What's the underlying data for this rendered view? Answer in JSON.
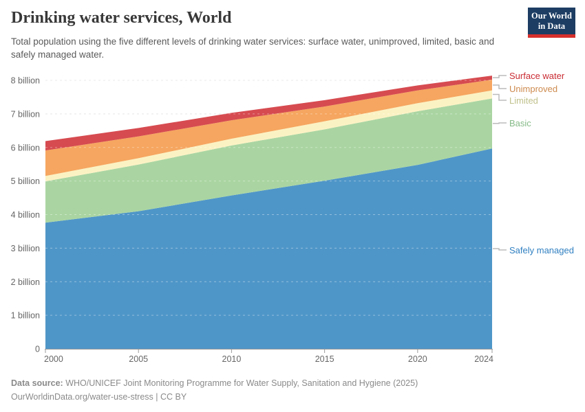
{
  "header": {
    "title": "Drinking water services, World",
    "subtitle": "Total population using the five different levels of drinking water services: surface water, unimproved, limited, basic and safely managed water.",
    "logo": {
      "line1": "Our World",
      "line2": "in Data"
    }
  },
  "chart_data": {
    "type": "area",
    "stacked": true,
    "title": "Drinking water services, World",
    "entity": "World",
    "unit": "billion people",
    "legend_position": "right",
    "grid": "dashed-horizontal",
    "x": [
      2000,
      2005,
      2010,
      2015,
      2020,
      2024
    ],
    "series": [
      {
        "name": "Safely managed",
        "color": "#4f96c8",
        "label_color": "#2f7fc1",
        "values": [
          3.76,
          4.1,
          4.57,
          5.01,
          5.48,
          5.97
        ]
      },
      {
        "name": "Basic",
        "color": "#aad5a2",
        "label_color": "#85ba87",
        "values": [
          1.23,
          1.39,
          1.49,
          1.53,
          1.6,
          1.49
        ]
      },
      {
        "name": "Limited",
        "color": "#fbf2c3",
        "label_color": "#c0c18c",
        "values": [
          0.16,
          0.19,
          0.2,
          0.24,
          0.24,
          0.24
        ]
      },
      {
        "name": "Unimproved",
        "color": "#f6a660",
        "label_color": "#cd8a4e",
        "values": [
          0.76,
          0.65,
          0.55,
          0.44,
          0.38,
          0.32
        ]
      },
      {
        "name": "Surface water",
        "color": "#d64b50",
        "label_color": "#c92a32",
        "values": [
          0.28,
          0.25,
          0.22,
          0.19,
          0.15,
          0.12
        ]
      }
    ],
    "ylim": [
      0,
      8.5
    ],
    "yticks": [
      {
        "value": 0,
        "label": "0"
      },
      {
        "value": 1,
        "label": "1 billion"
      },
      {
        "value": 2,
        "label": "2 billion"
      },
      {
        "value": 3,
        "label": "3 billion"
      },
      {
        "value": 4,
        "label": "4 billion"
      },
      {
        "value": 5,
        "label": "5 billion"
      },
      {
        "value": 6,
        "label": "6 billion"
      },
      {
        "value": 7,
        "label": "7 billion"
      },
      {
        "value": 8,
        "label": "8 billion"
      }
    ],
    "xticks": [
      {
        "value": 2000,
        "label": "2000"
      },
      {
        "value": 2005,
        "label": "2005"
      },
      {
        "value": 2010,
        "label": "2010"
      },
      {
        "value": 2015,
        "label": "2015"
      },
      {
        "value": 2020,
        "label": "2020"
      },
      {
        "value": 2024,
        "label": "2024"
      }
    ]
  },
  "footer": {
    "source_label": "Data source:",
    "source_text": "WHO/UNICEF Joint Monitoring Programme for Water Supply, Sanitation and Hygiene (2025)",
    "license_line": "OurWorldinData.org/water-use-stress | CC BY"
  }
}
